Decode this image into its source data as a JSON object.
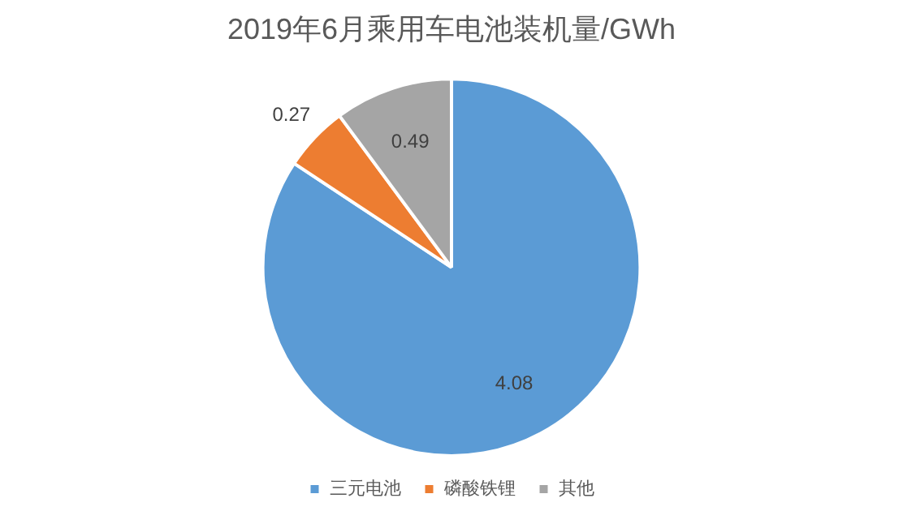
{
  "chart_data": {
    "type": "pie",
    "title": "2019年6月乘用车电池装机量/GWh",
    "categories": [
      "三元电池",
      "磷酸铁锂",
      "其他"
    ],
    "values": [
      4.08,
      0.27,
      0.49
    ],
    "colors": [
      "#5b9bd5",
      "#ed7d31",
      "#a5a5a5"
    ],
    "data_labels": true,
    "legend": "bottom"
  }
}
